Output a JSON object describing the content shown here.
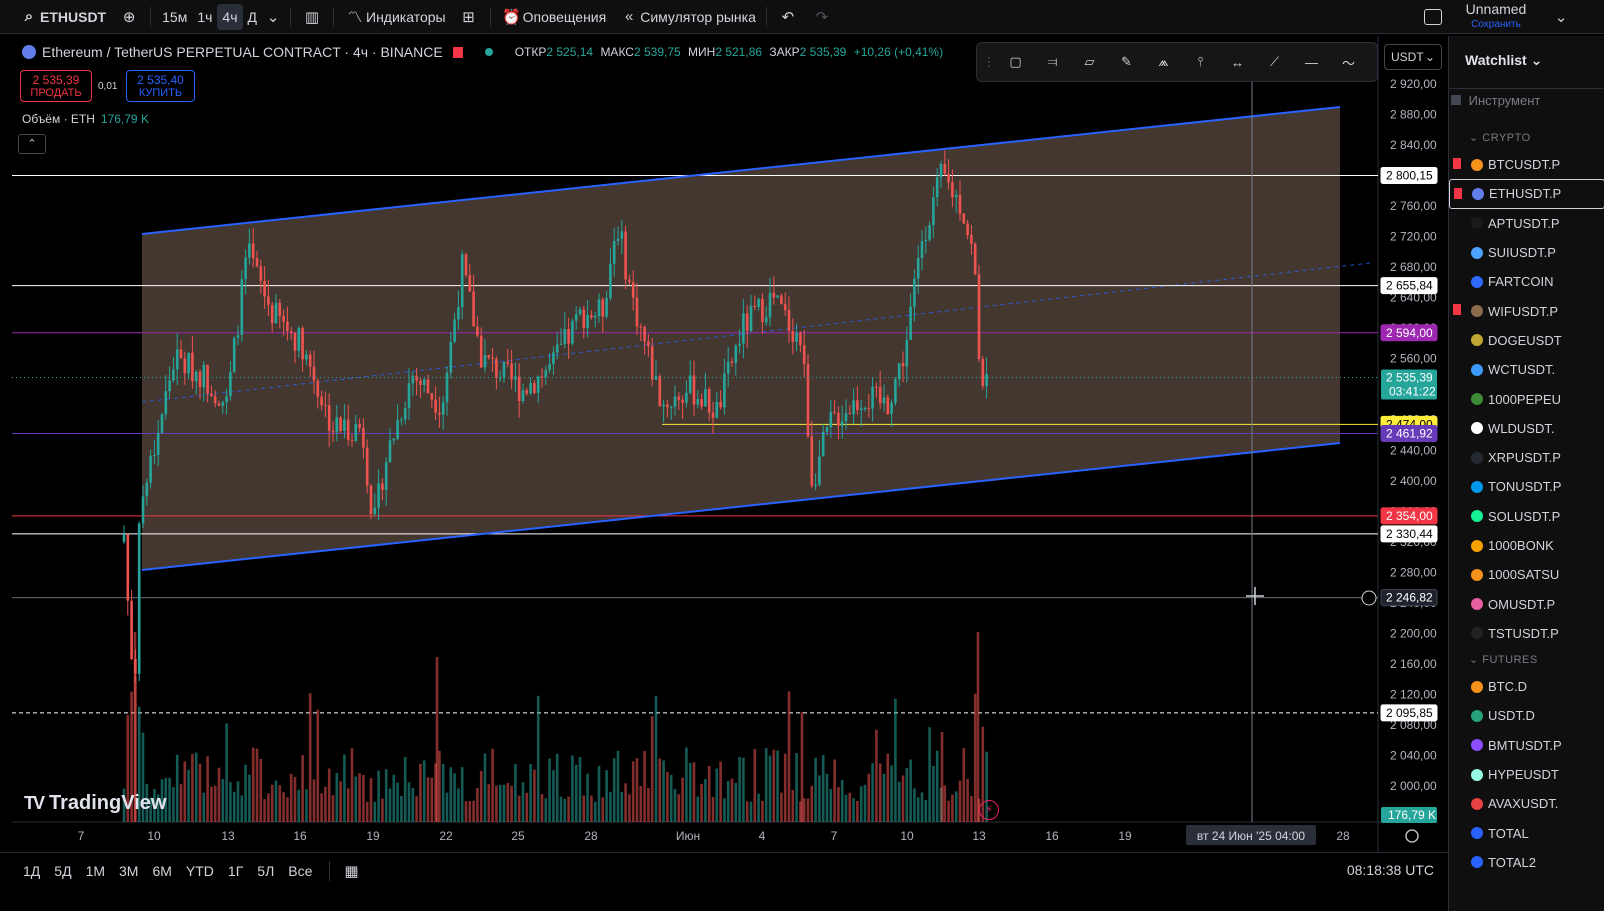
{
  "topbar": {
    "symbol": "ETHUSDT",
    "intervals": [
      "15м",
      "1ч",
      "4ч",
      "Д"
    ],
    "active_interval": "4ч",
    "indicators_label": "Индикаторы",
    "alerts_label": "Оповещения",
    "replay_label": "Симулятор рынка",
    "layout_name": "Unnamed",
    "save_label": "Сохранить"
  },
  "legend": {
    "title": "Ethereum / TetherUS PERPETUAL CONTRACT · 4ч · BINANCE",
    "open_label": "ОТКР",
    "open": "2 525,14",
    "high_label": "МАКС",
    "high": "2 539,75",
    "low_label": "МИН",
    "low": "2 521,86",
    "close_label": "ЗАКР",
    "close": "2 535,39",
    "change": "+10,26 (+0,41%)"
  },
  "trade": {
    "sell_price": "2 535,39",
    "sell_label": "ПРОДАТЬ",
    "spread": "0,01",
    "buy_price": "2 535,40",
    "buy_label": "КУПИТЬ"
  },
  "volume_legend": {
    "label": "Объём · ETH",
    "value": "176,79 K"
  },
  "currency": "USDT",
  "brand": "TradingView",
  "price_axis": {
    "ticks": [
      "2 920,00",
      "2 880,00",
      "2 840,00",
      "2 800,00",
      "2 760,00",
      "2 720,00",
      "2 680,00",
      "2 640,00",
      "2 600,00",
      "2 560,00",
      "2 520,00",
      "2 480,00",
      "2 440,00",
      "2 400,00",
      "2 360,00",
      "2 320,00",
      "2 280,00",
      "2 240,00",
      "2 200,00",
      "2 160,00",
      "2 120,00",
      "2 080,00",
      "2 040,00",
      "2 000,00"
    ],
    "labels": [
      {
        "text": "2 800,15",
        "price": 2800.15,
        "bg": "#ffffff",
        "fg": "#000000"
      },
      {
        "text": "2 655,84",
        "price": 2655.84,
        "bg": "#ffffff",
        "fg": "#000000"
      },
      {
        "text": "2 594,00",
        "price": 2594.0,
        "bg": "#9c27b0",
        "fg": "#ffffff"
      },
      {
        "text": "2 474,00",
        "price": 2474.0,
        "bg": "#ffeb3b",
        "fg": "#000000"
      },
      {
        "text": "2 461,92",
        "price": 2461.92,
        "bg": "#673ab7",
        "fg": "#ffffff"
      },
      {
        "text": "2 354,00",
        "price": 2354.0,
        "bg": "#f23645",
        "fg": "#ffffff"
      },
      {
        "text": "2 330,44",
        "price": 2330.44,
        "bg": "#ffffff",
        "fg": "#000000"
      },
      {
        "text": "2 246,82",
        "price": 2246.82,
        "bg": "#1e222d",
        "fg": "#ffffff"
      },
      {
        "text": "2 095,85",
        "price": 2095.85,
        "bg": "#ffffff",
        "fg": "#000000"
      }
    ],
    "current_price": "2 535,39",
    "countdown": "03:41:22",
    "volume_label": "176,79 K"
  },
  "time_axis": {
    "ticks": [
      "7",
      "10",
      "13",
      "16",
      "19",
      "22",
      "25",
      "28",
      "Июн",
      "4",
      "7",
      "10",
      "13",
      "16",
      "19",
      "28"
    ],
    "crosshair_label": "вт 24 Июн '25   04:00"
  },
  "bottombar": {
    "ranges": [
      "1Д",
      "5Д",
      "1М",
      "3М",
      "6М",
      "YTD",
      "1Г",
      "5Л",
      "Все"
    ],
    "clock": "08:18:38 UTC"
  },
  "watchlist": {
    "title": "Watchlist",
    "column": "Инструмент",
    "sections": [
      {
        "name": "CRYPTO",
        "items": [
          {
            "symbol": "BTCUSDT.P",
            "color": "#f7931a",
            "flag": true
          },
          {
            "symbol": "ETHUSDT.P",
            "color": "#627eea",
            "flag": true,
            "selected": true
          },
          {
            "symbol": "APTUSDT.P",
            "color": "#1a1a1a",
            "flag": false
          },
          {
            "symbol": "SUIUSDT.P",
            "color": "#4da2ff",
            "flag": false
          },
          {
            "symbol": "FARTCOIN",
            "color": "#2f6bff",
            "flag": false
          },
          {
            "symbol": "WIFUSDT.P",
            "color": "#8b6b4a",
            "flag": true
          },
          {
            "symbol": "DOGEUSDT",
            "color": "#c2a633",
            "flag": false
          },
          {
            "symbol": "WCTUSDT.",
            "color": "#3b99fc",
            "flag": false
          },
          {
            "symbol": "1000PEPEU",
            "color": "#3d8b37",
            "flag": false
          },
          {
            "symbol": "WLDUSDT.",
            "color": "#ffffff",
            "flag": false
          },
          {
            "symbol": "XRPUSDT.P",
            "color": "#23292f",
            "flag": false
          },
          {
            "symbol": "TONUSDT.P",
            "color": "#0098ea",
            "flag": false
          },
          {
            "symbol": "SOLUSDT.P",
            "color": "#14f195",
            "flag": false
          },
          {
            "symbol": "1000BONK",
            "color": "#f8a100",
            "flag": false
          },
          {
            "symbol": "1000SATSU",
            "color": "#f7931a",
            "flag": false
          },
          {
            "symbol": "OMUSDT.P",
            "color": "#e55fa1",
            "flag": false
          },
          {
            "symbol": "TSTUSDT.P",
            "color": "#222222",
            "flag": false
          }
        ]
      },
      {
        "name": "FUTURES",
        "items": [
          {
            "symbol": "BTC.D",
            "color": "#f7931a",
            "flag": false
          },
          {
            "symbol": "USDT.D",
            "color": "#26a17b",
            "flag": false
          },
          {
            "symbol": "BMTUSDT.P",
            "color": "#8a4dff",
            "flag": false
          },
          {
            "symbol": "HYPEUSDT",
            "color": "#97fce4",
            "flag": false
          },
          {
            "symbol": "AVAXUSDT.",
            "color": "#e84142",
            "flag": false
          },
          {
            "symbol": "TOTAL",
            "color": "#2962ff",
            "flag": false
          },
          {
            "symbol": "TOTAL2",
            "color": "#2962ff",
            "flag": false
          }
        ]
      }
    ]
  },
  "chart_data": {
    "type": "candlestick",
    "series": [
      {
        "name": "ETHUSDT.P",
        "candles": []
      }
    ],
    "price_range": [
      1980,
      2940
    ],
    "channel": {
      "upper": [
        [
          0,
          2722
        ],
        [
          1,
          2888
        ]
      ],
      "lower": [
        [
          0,
          2280
        ],
        [
          1,
          2446
        ]
      ],
      "mid_dashed": true
    },
    "horizontal_levels": [
      2800.15,
      2655.84,
      2594.0,
      2474.0,
      2461.92,
      2354.0,
      2330.44,
      2246.82,
      2095.85
    ]
  }
}
